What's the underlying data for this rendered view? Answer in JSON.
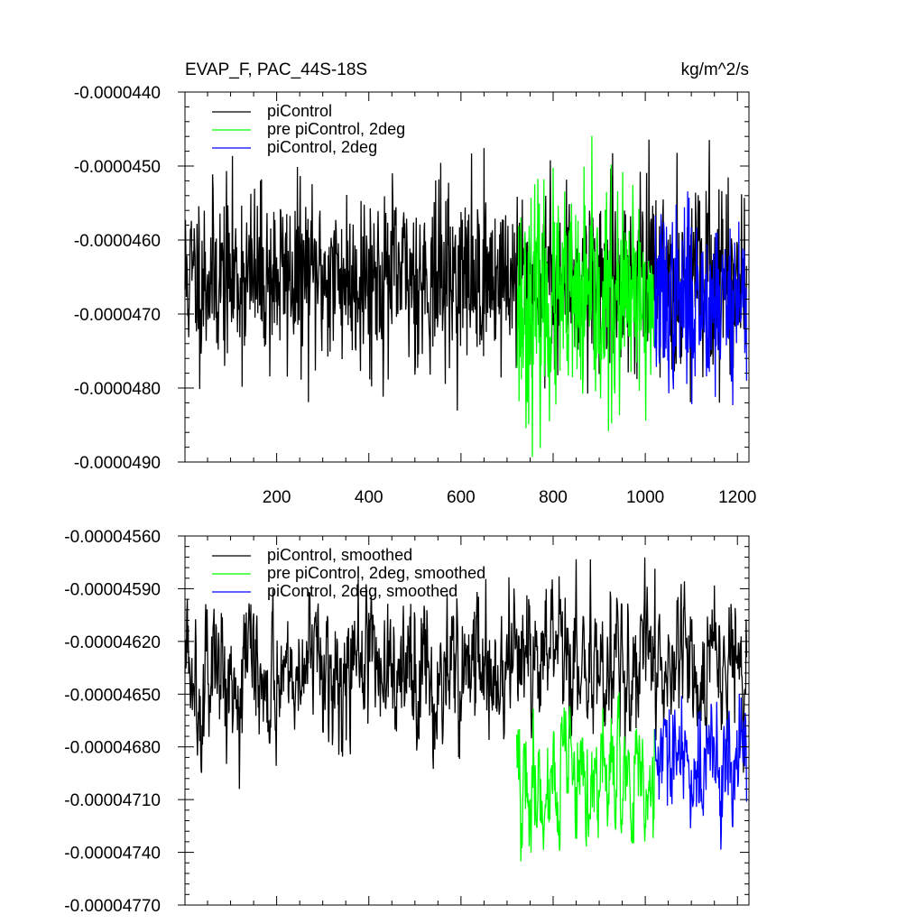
{
  "chart_data": [
    {
      "type": "line",
      "title_left": "EVAP_F, PAC_44S-18S",
      "title_right": "kg/m^2/s",
      "xlim": [
        1,
        1225
      ],
      "ylim": [
        -4.9e-05,
        -4.4e-05
      ],
      "x_ticks": [
        200,
        400,
        600,
        800,
        1000,
        1200
      ],
      "x_tick_labels": [
        "200",
        "400",
        "600",
        "800",
        "1000",
        "1200"
      ],
      "y_ticks": [
        -4.9e-05,
        -4.8e-05,
        -4.7e-05,
        -4.6e-05,
        -4.5e-05,
        -4.4e-05
      ],
      "y_tick_labels": [
        "-0.0000490",
        "-0.0000480",
        "-0.0000470",
        "-0.0000460",
        "-0.0000450",
        "-0.0000440"
      ],
      "legend_position": "top-left",
      "series": [
        {
          "name": "piControl",
          "color": "#000000",
          "x_start": 1,
          "x_end": 1220,
          "mean": -4.65e-05,
          "std": 6e-07,
          "seed": 11
        },
        {
          "name": "pre piControl, 2deg",
          "color": "#00ff00",
          "x_start": 721,
          "x_end": 1020,
          "mean": -4.69e-05,
          "std": 7.5e-07,
          "seed": 23
        },
        {
          "name": "piControl, 2deg",
          "color": "#0000ff",
          "x_start": 1021,
          "x_end": 1220,
          "mean": -4.68e-05,
          "std": 6e-07,
          "seed": 37
        }
      ]
    },
    {
      "type": "line",
      "xlim": [
        1,
        1225
      ],
      "ylim": [
        -4.77e-05,
        -4.56e-05
      ],
      "x_ticks": [
        200,
        400,
        600,
        800,
        1000,
        1200
      ],
      "y_ticks": [
        -4.77e-05,
        -4.74e-05,
        -4.71e-05,
        -4.68e-05,
        -4.65e-05,
        -4.62e-05,
        -4.59e-05,
        -4.56e-05
      ],
      "y_tick_labels": [
        "-0.00004770",
        "-0.00004740",
        "-0.00004710",
        "-0.00004680",
        "-0.00004650",
        "-0.00004620",
        "-0.00004590",
        "-0.00004560"
      ],
      "legend_position": "top-left",
      "series": [
        {
          "name": "piControl, smoothed",
          "color": "#000000",
          "x_start": 1,
          "x_end": 1220,
          "mean": -4.635e-05,
          "std": 2.2e-07,
          "seed": 5
        },
        {
          "name": "pre piControl, 2deg, smoothed",
          "color": "#00ff00",
          "x_start": 721,
          "x_end": 1020,
          "mean": -4.7e-05,
          "std": 2e-07,
          "seed": 19
        },
        {
          "name": "piControl, 2deg, smoothed",
          "color": "#0000ff",
          "x_start": 1021,
          "x_end": 1220,
          "mean": -4.69e-05,
          "std": 1.8e-07,
          "seed": 29
        }
      ]
    }
  ]
}
